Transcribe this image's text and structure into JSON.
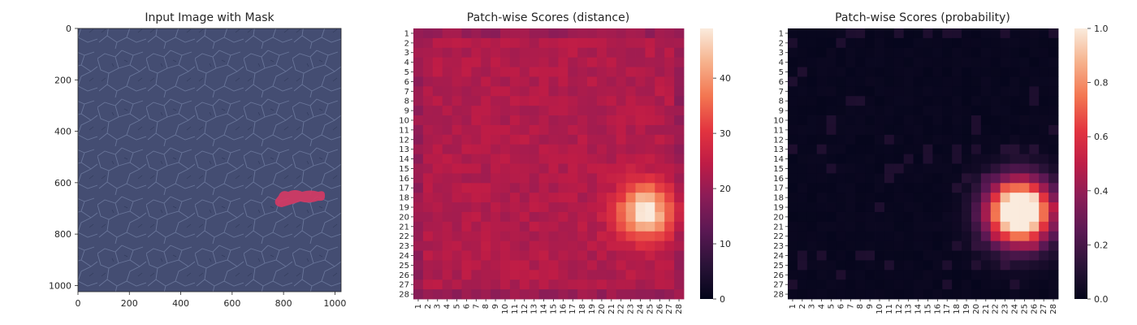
{
  "panels": [
    {
      "title": "Input Image with Mask"
    },
    {
      "title": "Patch-wise Scores (distance)"
    },
    {
      "title": "Patch-wise Scores (probability)"
    }
  ],
  "chart_data": [
    {
      "type": "image",
      "title": "Input Image with Mask",
      "x_ticks": [
        0,
        200,
        400,
        600,
        800,
        1000
      ],
      "y_ticks": [
        0,
        200,
        400,
        600,
        800,
        1000
      ],
      "xlim": [
        0,
        1024
      ],
      "ylim": [
        1024,
        0
      ],
      "image_colors": {
        "background": "#4a5479",
        "mask": "#d43a64"
      },
      "mask_region": {
        "x_range": [
          775,
          955
        ],
        "y_range": [
          640,
          700
        ]
      }
    },
    {
      "type": "heatmap",
      "title": "Patch-wise Scores (distance)",
      "rows": 28,
      "cols": 28,
      "x_ticks": [
        "1",
        "2",
        "3",
        "4",
        "5",
        "6",
        "7",
        "8",
        "9",
        "10",
        "11",
        "12",
        "13",
        "14",
        "15",
        "16",
        "17",
        "18",
        "19",
        "20",
        "21",
        "22",
        "23",
        "24",
        "25",
        "26",
        "27",
        "28"
      ],
      "y_ticks": [
        "1",
        "2",
        "3",
        "4",
        "5",
        "6",
        "7",
        "8",
        "9",
        "10",
        "11",
        "12",
        "13",
        "14",
        "15",
        "16",
        "17",
        "18",
        "19",
        "20",
        "21",
        "22",
        "23",
        "24",
        "25",
        "26",
        "27",
        "28"
      ],
      "colorbar": {
        "min": 0,
        "max": 49,
        "ticks": [
          0,
          10,
          20,
          30,
          40
        ]
      },
      "colormap": "rocket",
      "baseline": 23,
      "hotspot": {
        "center_col": 24.5,
        "center_row": 19.5,
        "peak": 49,
        "sigma": 2.0
      }
    },
    {
      "type": "heatmap",
      "title": "Patch-wise Scores (probability)",
      "rows": 28,
      "cols": 28,
      "x_ticks": [
        "1",
        "2",
        "3",
        "4",
        "5",
        "6",
        "7",
        "8",
        "9",
        "10",
        "11",
        "12",
        "13",
        "14",
        "15",
        "16",
        "17",
        "18",
        "19",
        "20",
        "21",
        "22",
        "23",
        "24",
        "25",
        "26",
        "27",
        "28"
      ],
      "y_ticks": [
        "1",
        "2",
        "3",
        "4",
        "5",
        "6",
        "7",
        "8",
        "9",
        "10",
        "11",
        "12",
        "13",
        "14",
        "15",
        "16",
        "17",
        "18",
        "19",
        "20",
        "21",
        "22",
        "23",
        "24",
        "25",
        "26",
        "27",
        "28"
      ],
      "colorbar": {
        "min": 0.0,
        "max": 1.0,
        "ticks": [
          "0.0",
          "0.2",
          "0.4",
          "0.6",
          "0.8",
          "1.0"
        ]
      },
      "colormap": "rocket",
      "baseline": 0.01,
      "hotspot": {
        "center_col": 24.5,
        "center_row": 19.5,
        "peak": 1.0,
        "sigma": 2.3
      }
    }
  ]
}
